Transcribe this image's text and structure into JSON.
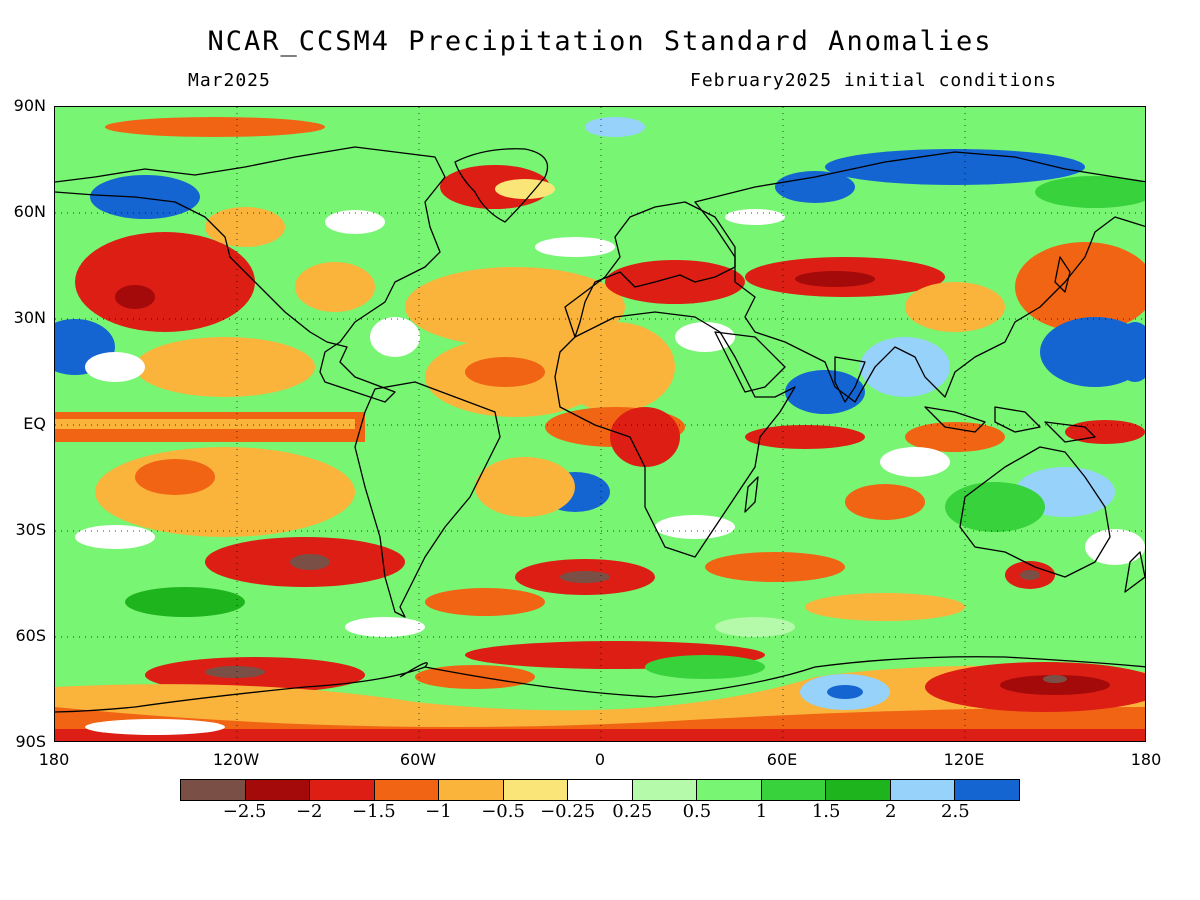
{
  "title": "NCAR_CCSM4 Precipitation Standard Anomalies",
  "subtitle_left": "Mar2025",
  "subtitle_right": "February2025 initial conditions",
  "map": {
    "projection": "equirectangular",
    "lon_range": [
      -180,
      180
    ],
    "lat_range": [
      -90,
      90
    ],
    "lat_labels": [
      "90N",
      "60N",
      "30N",
      "EQ",
      "30S",
      "60S",
      "90S"
    ],
    "lon_labels": [
      "180",
      "120W",
      "60W",
      "0",
      "60E",
      "120E",
      "180"
    ],
    "graticule": "dotted",
    "coastlines": true
  },
  "colorbar": {
    "colors": [
      "#7a5046",
      "#a50a0a",
      "#dc1e14",
      "#f06414",
      "#fab43c",
      "#fae678",
      "#ffffff",
      "#b4faaa",
      "#78f573",
      "#37d23c",
      "#1eb41e",
      "#96d2fa",
      "#1464d2"
    ],
    "labels": [
      "−2.5",
      "−2",
      "−1.5",
      "−1",
      "−0.5",
      "−0.25",
      "0.25",
      "0.5",
      "1",
      "1.5",
      "2",
      "2.5"
    ]
  }
}
